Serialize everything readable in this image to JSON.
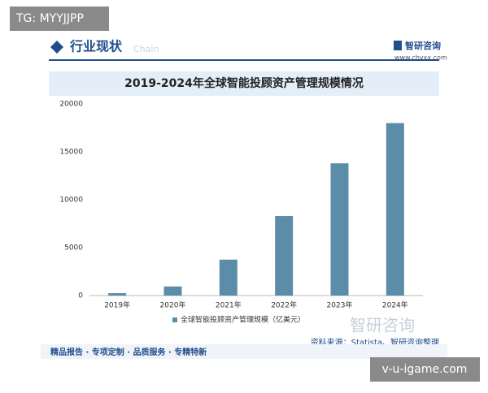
{
  "badge": "TG: MYYJJPP",
  "header": {
    "title": "行业现状",
    "subtitle": "Chain",
    "brand": "智研咨询",
    "url": "www.chyxx.com"
  },
  "chart_data": {
    "type": "bar",
    "title": "2019-2024年全球智能投顾资产管理规模情况",
    "categories": [
      "2019年",
      "2020年",
      "2021年",
      "2022年",
      "2023年",
      "2024年"
    ],
    "series": [
      {
        "name": "全球智能投顾资产管理规模（亿美元）",
        "color": "#5b8ca8",
        "values": [
          250,
          950,
          3750,
          8300,
          13800,
          18000
        ]
      }
    ],
    "ylim": [
      0,
      20000
    ],
    "yticks": [
      0,
      5000,
      10000,
      15000,
      20000
    ],
    "grid": false
  },
  "source": "资料来源：Statista、智研咨询整理",
  "footer": "精品报告 · 专项定制 · 品质服务 · 专精特新",
  "watermark": "智研咨询",
  "site_badge": "v-u-igame.com"
}
